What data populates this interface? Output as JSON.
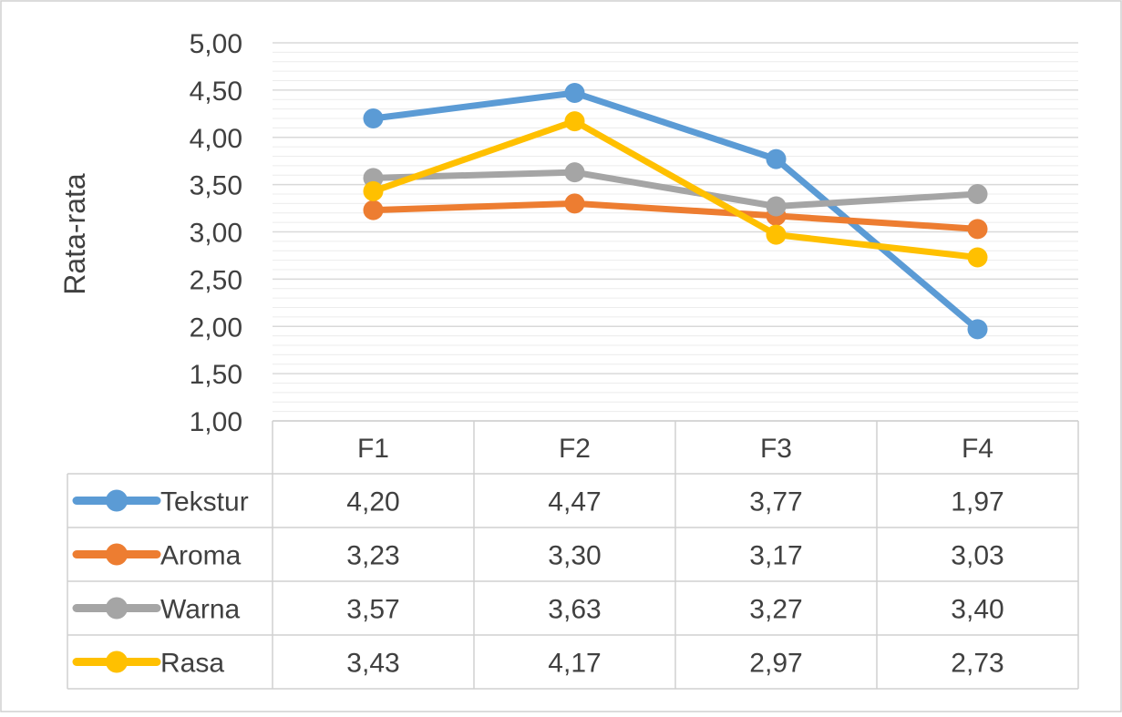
{
  "chart_data": {
    "type": "line",
    "categories": [
      "F1",
      "F2",
      "F3",
      "F4"
    ],
    "series": [
      {
        "name": "Tekstur",
        "values": [
          4.2,
          4.47,
          3.77,
          1.97
        ],
        "labels": [
          "4,20",
          "4,47",
          "3,77",
          "1,97"
        ],
        "color": "#5B9BD5"
      },
      {
        "name": "Aroma",
        "values": [
          3.23,
          3.3,
          3.17,
          3.03
        ],
        "labels": [
          "3,23",
          "3,30",
          "3,17",
          "3,03"
        ],
        "color": "#ED7D31"
      },
      {
        "name": "Warna",
        "values": [
          3.57,
          3.63,
          3.27,
          3.4
        ],
        "labels": [
          "3,57",
          "3,63",
          "3,27",
          "3,40"
        ],
        "color": "#A5A5A5"
      },
      {
        "name": "Rasa",
        "values": [
          3.43,
          4.17,
          2.97,
          2.73
        ],
        "labels": [
          "3,43",
          "4,17",
          "2,97",
          "2,73"
        ],
        "color": "#FFC000"
      }
    ],
    "title": "",
    "xlabel": "",
    "ylabel": "Rata-rata",
    "ylim": [
      1.0,
      5.0
    ],
    "yticks": [
      1.0,
      1.5,
      2.0,
      2.5,
      3.0,
      3.5,
      4.0,
      4.5,
      5.0
    ],
    "ytick_labels": [
      "1,00",
      "1,50",
      "2,00",
      "2,50",
      "3,00",
      "3,50",
      "4,00",
      "4,50",
      "5,00"
    ],
    "grid": true,
    "legend": "data-table-below"
  }
}
